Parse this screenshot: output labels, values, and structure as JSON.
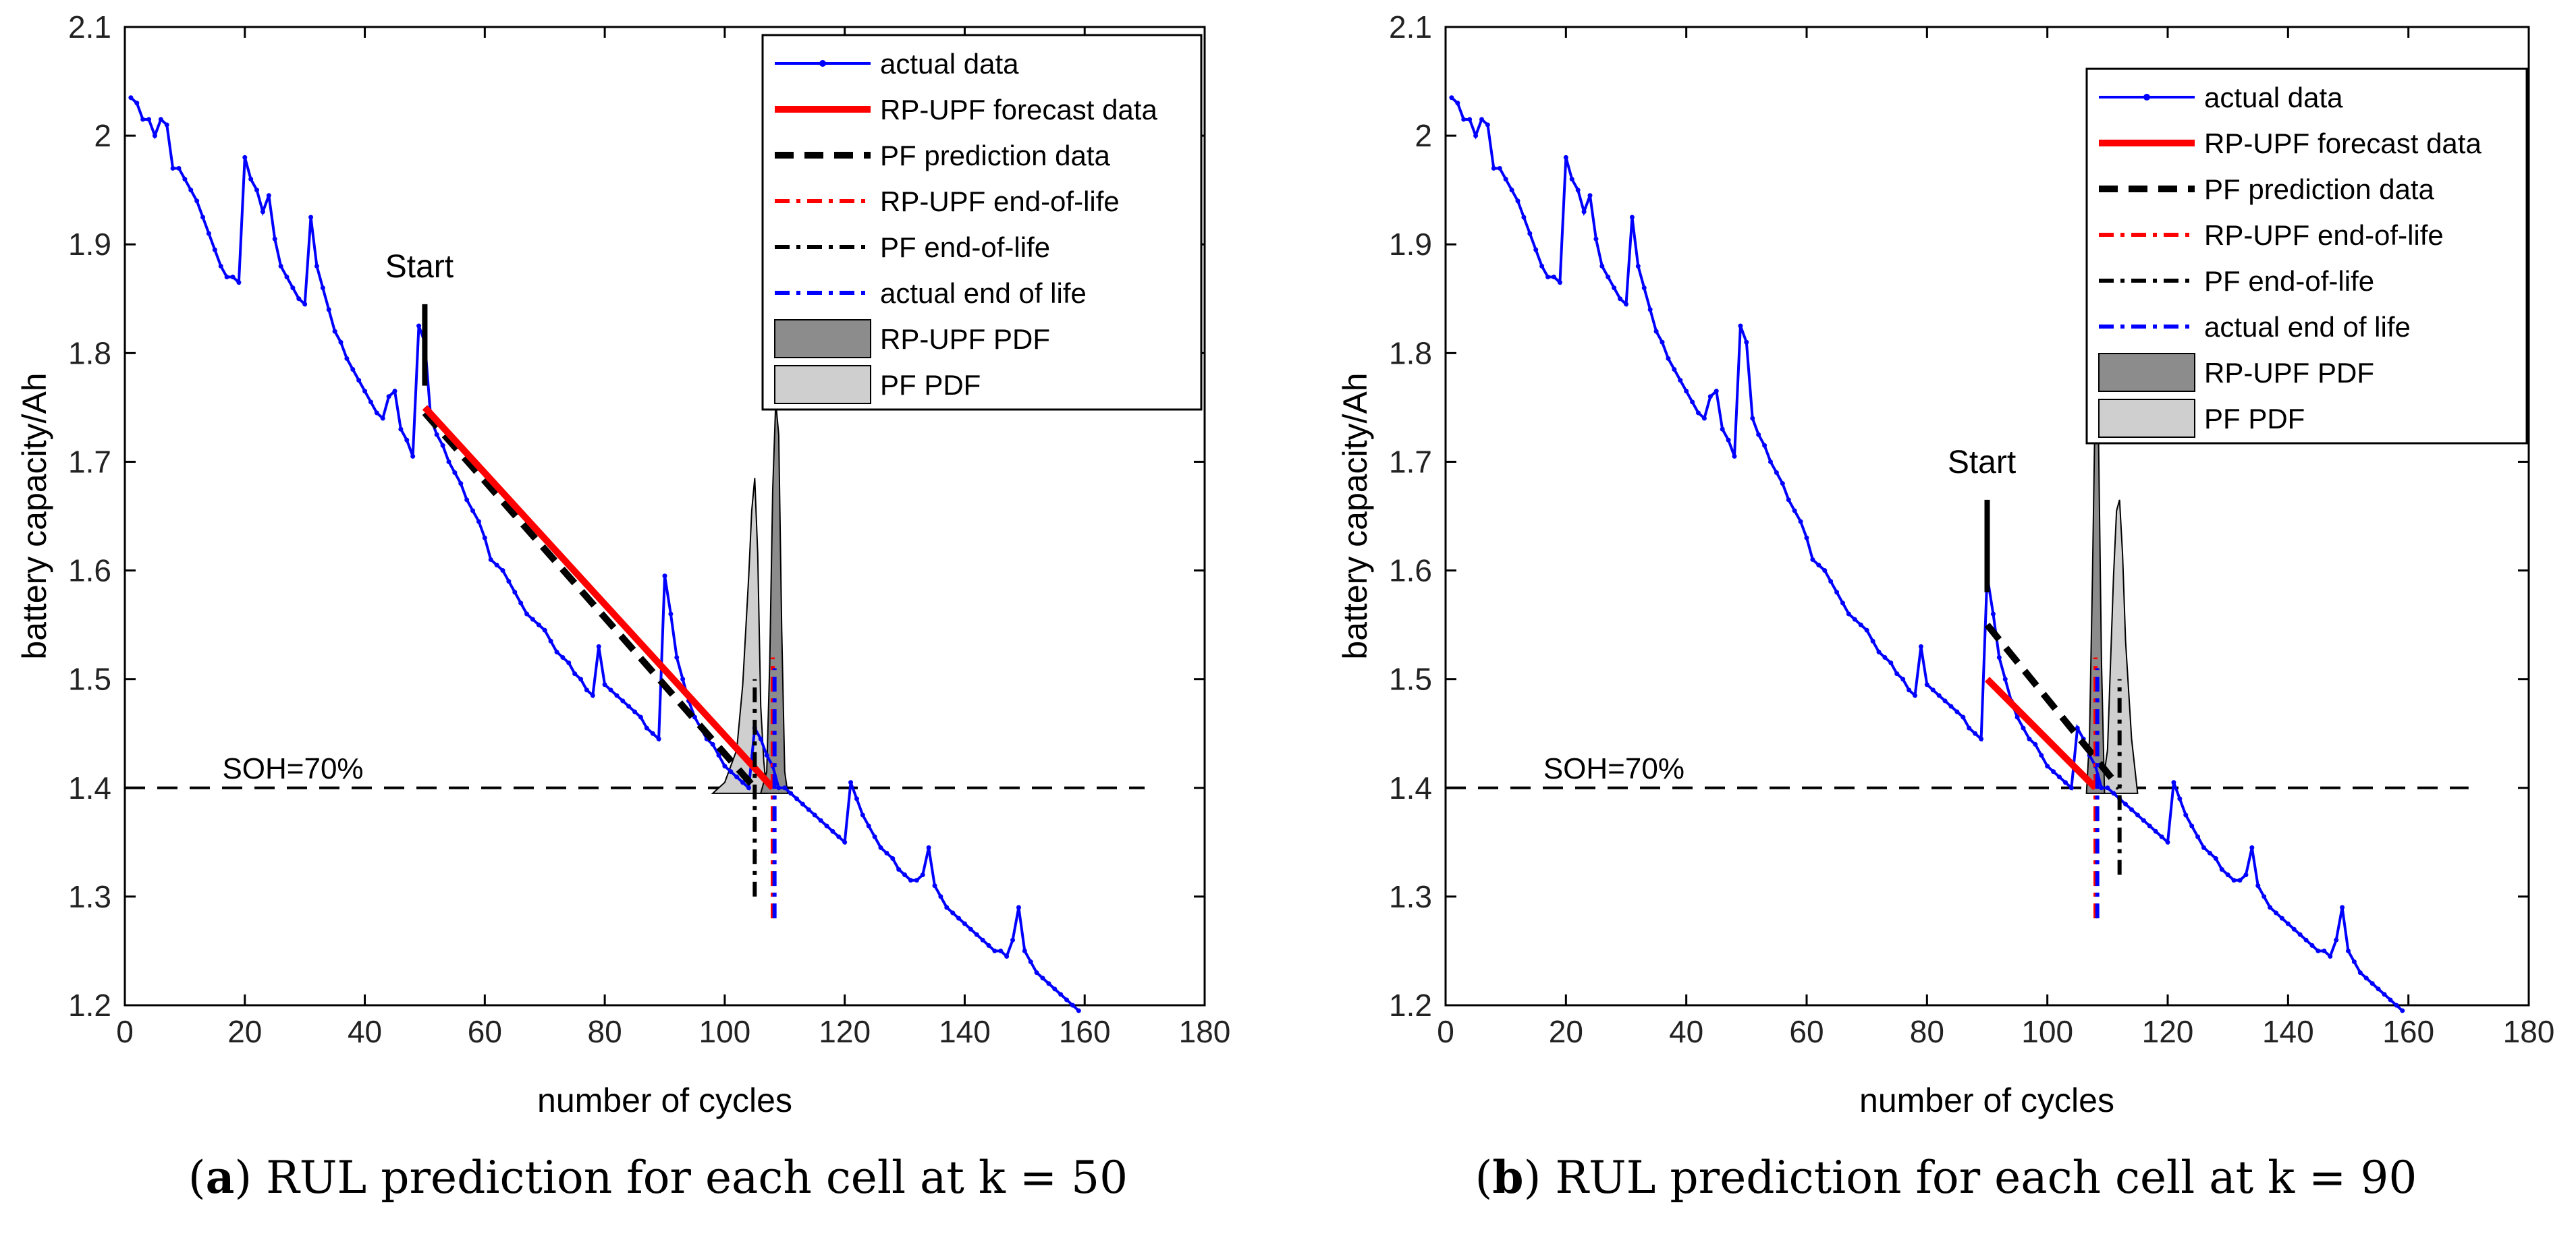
{
  "colors": {
    "actual": "#0000ff",
    "rp_upf": "#ff0000",
    "pf": "#000000",
    "rp_upf_pdf_fill": "#8c8c8c",
    "pf_pdf_fill": "#cfcfcf"
  },
  "chart_data": [
    {
      "type": "line",
      "panel": "a",
      "caption_label": "a",
      "caption_text": "RUL prediction for each cell at k = 50",
      "xlabel": "number of cycles",
      "ylabel": "battery capacity/Ah",
      "xlim": [
        0,
        180
      ],
      "ylim": [
        1.2,
        2.1
      ],
      "xticks": [
        0,
        20,
        40,
        60,
        80,
        100,
        120,
        140,
        160,
        180
      ],
      "yticks": [
        1.2,
        1.3,
        1.4,
        1.5,
        1.6,
        1.7,
        1.8,
        1.9,
        2,
        2.1
      ],
      "ytick_labels": [
        "1.2",
        "1.3",
        "1.4",
        "1.5",
        "1.6",
        "1.7",
        "1.8",
        "1.9",
        "2",
        "2.1"
      ],
      "threshold": {
        "y": 1.4,
        "label": "SOH=70%",
        "label_at": [
          14,
          1.4
        ]
      },
      "start": {
        "x": 50,
        "y_range": [
          1.77,
          1.845
        ],
        "label": "Start"
      },
      "legend": {
        "position": "top-right",
        "entries": [
          {
            "key": "actual",
            "label": "actual data"
          },
          {
            "key": "rp_line",
            "label": "RP-UPF forecast data"
          },
          {
            "key": "pf_line",
            "label": "PF prediction data"
          },
          {
            "key": "rp_eol",
            "label": "RP-UPF end-of-life"
          },
          {
            "key": "pf_eol",
            "label": "PF end-of-life"
          },
          {
            "key": "act_eol",
            "label": "actual end of life"
          },
          {
            "key": "rp_pdf",
            "label": "RP-UPF PDF"
          },
          {
            "key": "pf_pdf",
            "label": "PF PDF"
          }
        ]
      },
      "forecast": {
        "rp_upf": {
          "x": [
            50,
            108
          ],
          "y": [
            1.75,
            1.4
          ]
        },
        "pf": {
          "x": [
            50,
            105
          ],
          "y": [
            1.745,
            1.4
          ]
        }
      },
      "end_of_life": {
        "rp_upf": {
          "x": 108,
          "y_range": [
            1.28,
            1.52
          ]
        },
        "pf": {
          "x": 105,
          "y_range": [
            1.3,
            1.5
          ]
        },
        "actual": {
          "x": 108.3,
          "y_range": [
            1.28,
            1.51
          ]
        }
      },
      "pdf": {
        "base": 1.395,
        "rp_upf": {
          "x": [
            106,
            107,
            107.5,
            108,
            108.5,
            109,
            109.5,
            110,
            110.5
          ],
          "y": [
            0,
            0.02,
            0.12,
            0.28,
            0.36,
            0.33,
            0.15,
            0.02,
            0
          ]
        },
        "pf": {
          "x": [
            98,
            100,
            102,
            103,
            104,
            104.5,
            105,
            105.5,
            106,
            106.5,
            107
          ],
          "y": [
            0,
            0.01,
            0.04,
            0.1,
            0.2,
            0.26,
            0.29,
            0.22,
            0.08,
            0.03,
            0
          ]
        }
      }
    },
    {
      "type": "line",
      "panel": "b",
      "caption_label": "b",
      "caption_text": "RUL prediction for each cell at k = 90",
      "xlabel": "number of cycles",
      "ylabel": "battery capacity/Ah",
      "xlim": [
        0,
        180
      ],
      "ylim": [
        1.2,
        2.1
      ],
      "xticks": [
        0,
        20,
        40,
        60,
        80,
        100,
        120,
        140,
        160,
        180
      ],
      "yticks": [
        1.2,
        1.3,
        1.4,
        1.5,
        1.6,
        1.7,
        1.8,
        1.9,
        2,
        2.1
      ],
      "ytick_labels": [
        "1.2",
        "1.3",
        "1.4",
        "1.5",
        "1.6",
        "1.7",
        "1.8",
        "1.9",
        "2",
        "2.1"
      ],
      "threshold": {
        "y": 1.4,
        "label": "SOH=70%",
        "label_at": [
          14,
          1.4
        ]
      },
      "start": {
        "x": 90,
        "y_range": [
          1.58,
          1.665
        ],
        "label": "Start"
      },
      "legend": {
        "position": "top-right",
        "entries": [
          {
            "key": "actual",
            "label": "actual data"
          },
          {
            "key": "rp_line",
            "label": "RP-UPF forecast data"
          },
          {
            "key": "pf_line",
            "label": "PF prediction data"
          },
          {
            "key": "rp_eol",
            "label": "RP-UPF end-of-life"
          },
          {
            "key": "pf_eol",
            "label": "PF end-of-life"
          },
          {
            "key": "act_eol",
            "label": "actual end of life"
          },
          {
            "key": "rp_pdf",
            "label": "RP-UPF PDF"
          },
          {
            "key": "pf_pdf",
            "label": "PF PDF"
          }
        ]
      },
      "forecast": {
        "rp_upf": {
          "x": [
            90,
            108
          ],
          "y": [
            1.5,
            1.4
          ]
        },
        "pf": {
          "x": [
            90,
            112
          ],
          "y": [
            1.55,
            1.4
          ]
        }
      },
      "end_of_life": {
        "rp_upf": {
          "x": 108,
          "y_range": [
            1.28,
            1.52
          ]
        },
        "pf": {
          "x": 112,
          "y_range": [
            1.32,
            1.5
          ]
        },
        "actual": {
          "x": 108.3,
          "y_range": [
            1.28,
            1.51
          ]
        }
      },
      "pdf": {
        "base": 1.395,
        "rp_upf": {
          "x": [
            106.5,
            107,
            107.5,
            108,
            108.5,
            109,
            109.5
          ],
          "y": [
            0,
            0.05,
            0.2,
            0.38,
            0.33,
            0.12,
            0
          ]
        },
        "pf": {
          "x": [
            109,
            110,
            110.5,
            111,
            111.5,
            112,
            112.5,
            113,
            114,
            115
          ],
          "y": [
            0,
            0.04,
            0.12,
            0.2,
            0.26,
            0.27,
            0.22,
            0.14,
            0.05,
            0
          ]
        }
      }
    }
  ],
  "actual_series": {
    "note_panels": "same actual data in both panels",
    "x": [
      1,
      2,
      3,
      4,
      5,
      6,
      7,
      8,
      9,
      10,
      11,
      12,
      13,
      14,
      15,
      16,
      17,
      18,
      19,
      20,
      21,
      22,
      23,
      24,
      25,
      26,
      27,
      28,
      29,
      30,
      31,
      32,
      33,
      34,
      35,
      36,
      37,
      38,
      39,
      40,
      41,
      42,
      43,
      44,
      45,
      46,
      47,
      48,
      49,
      50,
      51,
      52,
      53,
      54,
      55,
      56,
      57,
      58,
      59,
      60,
      61,
      62,
      63,
      64,
      65,
      66,
      67,
      68,
      69,
      70,
      71,
      72,
      73,
      74,
      75,
      76,
      77,
      78,
      79,
      80,
      81,
      82,
      83,
      84,
      85,
      86,
      87,
      88,
      89,
      90,
      91,
      92,
      93,
      94,
      95,
      96,
      97,
      98,
      99,
      100,
      101,
      102,
      103,
      104,
      105,
      106,
      107,
      108,
      109,
      110,
      111,
      112,
      113,
      114,
      115,
      116,
      117,
      118,
      119,
      120,
      121,
      122,
      123,
      124,
      125,
      126,
      127,
      128,
      129,
      130,
      131,
      132,
      133,
      134,
      135,
      136,
      137,
      138,
      139,
      140,
      141,
      142,
      143,
      144,
      145,
      146,
      147,
      148,
      149,
      150,
      151,
      152,
      153,
      154,
      155,
      156,
      157,
      158,
      159
    ],
    "y": [
      2.035,
      2.03,
      2.015,
      2.015,
      2.0,
      2.015,
      2.01,
      1.97,
      1.97,
      1.96,
      1.95,
      1.94,
      1.925,
      1.91,
      1.895,
      1.88,
      1.87,
      1.87,
      1.865,
      1.98,
      1.96,
      1.95,
      1.93,
      1.945,
      1.905,
      1.88,
      1.87,
      1.86,
      1.85,
      1.845,
      1.925,
      1.88,
      1.86,
      1.84,
      1.82,
      1.81,
      1.795,
      1.785,
      1.775,
      1.765,
      1.755,
      1.745,
      1.74,
      1.76,
      1.765,
      1.73,
      1.72,
      1.705,
      1.825,
      1.81,
      1.74,
      1.725,
      1.715,
      1.7,
      1.69,
      1.68,
      1.665,
      1.655,
      1.645,
      1.63,
      1.61,
      1.605,
      1.6,
      1.59,
      1.58,
      1.57,
      1.56,
      1.555,
      1.55,
      1.545,
      1.535,
      1.525,
      1.52,
      1.515,
      1.505,
      1.5,
      1.49,
      1.485,
      1.53,
      1.495,
      1.49,
      1.485,
      1.48,
      1.475,
      1.47,
      1.465,
      1.455,
      1.45,
      1.445,
      1.595,
      1.56,
      1.52,
      1.5,
      1.48,
      1.465,
      1.455,
      1.445,
      1.44,
      1.43,
      1.42,
      1.415,
      1.41,
      1.405,
      1.4,
      1.455,
      1.445,
      1.43,
      1.42,
      1.4,
      1.4,
      1.395,
      1.39,
      1.385,
      1.38,
      1.375,
      1.37,
      1.365,
      1.36,
      1.355,
      1.35,
      1.405,
      1.39,
      1.375,
      1.365,
      1.355,
      1.345,
      1.34,
      1.335,
      1.325,
      1.32,
      1.315,
      1.315,
      1.32,
      1.345,
      1.31,
      1.3,
      1.29,
      1.285,
      1.28,
      1.275,
      1.27,
      1.265,
      1.26,
      1.255,
      1.25,
      1.25,
      1.245,
      1.26,
      1.29,
      1.25,
      1.24,
      1.23,
      1.225,
      1.22,
      1.215,
      1.21,
      1.205,
      1.2,
      1.195
    ]
  }
}
